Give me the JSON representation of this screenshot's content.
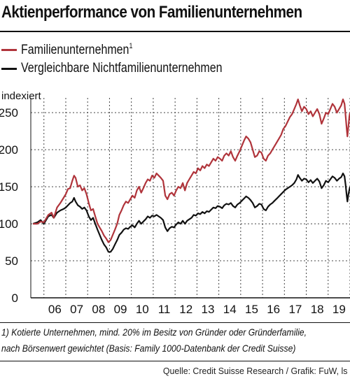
{
  "header": {
    "title": "Aktienperformance von Familienunternehmen"
  },
  "legend": [
    {
      "label": "Familienunternehmen",
      "sup": "1",
      "color": "#b0343b"
    },
    {
      "label": "Vergleichbare Nichtfamilienunternehmen",
      "sup": "",
      "color": "#111111"
    }
  ],
  "chart_data": {
    "type": "line",
    "ylabel": "indexiert",
    "ylim": [
      0,
      270
    ],
    "yticks": [
      0,
      50,
      100,
      150,
      200,
      250
    ],
    "xlim": [
      2005.4,
      2020.0
    ],
    "xticks": [
      "06",
      "07",
      "08",
      "09",
      "10",
      "11",
      "12",
      "13",
      "14",
      "15",
      "16",
      "17",
      "18",
      "19"
    ],
    "grid": true,
    "series": [
      {
        "name": "Familienunternehmen",
        "color": "#b0343b",
        "points": [
          [
            2005.5,
            100
          ],
          [
            2005.7,
            100
          ],
          [
            2005.85,
            103
          ],
          [
            2006.0,
            102
          ],
          [
            2006.2,
            112
          ],
          [
            2006.35,
            115
          ],
          [
            2006.45,
            108
          ],
          [
            2006.6,
            122
          ],
          [
            2006.75,
            128
          ],
          [
            2006.9,
            135
          ],
          [
            2007.0,
            140
          ],
          [
            2007.1,
            147
          ],
          [
            2007.2,
            148
          ],
          [
            2007.3,
            158
          ],
          [
            2007.38,
            165
          ],
          [
            2007.45,
            162
          ],
          [
            2007.55,
            150
          ],
          [
            2007.65,
            152
          ],
          [
            2007.75,
            145
          ],
          [
            2007.85,
            148
          ],
          [
            2007.95,
            140
          ],
          [
            2008.05,
            128
          ],
          [
            2008.15,
            118
          ],
          [
            2008.25,
            120
          ],
          [
            2008.35,
            110
          ],
          [
            2008.45,
            100
          ],
          [
            2008.55,
            95
          ],
          [
            2008.65,
            90
          ],
          [
            2008.75,
            84
          ],
          [
            2008.85,
            80
          ],
          [
            2008.95,
            75
          ],
          [
            2009.05,
            78
          ],
          [
            2009.15,
            85
          ],
          [
            2009.25,
            92
          ],
          [
            2009.35,
            100
          ],
          [
            2009.45,
            112
          ],
          [
            2009.55,
            118
          ],
          [
            2009.65,
            125
          ],
          [
            2009.75,
            130
          ],
          [
            2009.85,
            128
          ],
          [
            2009.95,
            133
          ],
          [
            2010.05,
            138
          ],
          [
            2010.15,
            135
          ],
          [
            2010.25,
            145
          ],
          [
            2010.35,
            150
          ],
          [
            2010.45,
            142
          ],
          [
            2010.55,
            148
          ],
          [
            2010.65,
            155
          ],
          [
            2010.75,
            160
          ],
          [
            2010.85,
            158
          ],
          [
            2010.95,
            165
          ],
          [
            2011.05,
            162
          ],
          [
            2011.15,
            168
          ],
          [
            2011.25,
            165
          ],
          [
            2011.35,
            162
          ],
          [
            2011.45,
            158
          ],
          [
            2011.55,
            138
          ],
          [
            2011.65,
            133
          ],
          [
            2011.75,
            140
          ],
          [
            2011.85,
            142
          ],
          [
            2011.95,
            138
          ],
          [
            2012.05,
            145
          ],
          [
            2012.15,
            150
          ],
          [
            2012.25,
            148
          ],
          [
            2012.35,
            155
          ],
          [
            2012.45,
            145
          ],
          [
            2012.55,
            155
          ],
          [
            2012.65,
            160
          ],
          [
            2012.75,
            165
          ],
          [
            2012.85,
            170
          ],
          [
            2012.95,
            168
          ],
          [
            2013.05,
            175
          ],
          [
            2013.15,
            172
          ],
          [
            2013.25,
            178
          ],
          [
            2013.35,
            175
          ],
          [
            2013.45,
            180
          ],
          [
            2013.55,
            178
          ],
          [
            2013.65,
            183
          ],
          [
            2013.75,
            188
          ],
          [
            2013.85,
            185
          ],
          [
            2013.95,
            190
          ],
          [
            2014.05,
            188
          ],
          [
            2014.15,
            185
          ],
          [
            2014.25,
            192
          ],
          [
            2014.35,
            195
          ],
          [
            2014.45,
            192
          ],
          [
            2014.55,
            198
          ],
          [
            2014.65,
            190
          ],
          [
            2014.75,
            185
          ],
          [
            2014.85,
            192
          ],
          [
            2014.95,
            198
          ],
          [
            2015.05,
            205
          ],
          [
            2015.15,
            212
          ],
          [
            2015.25,
            218
          ],
          [
            2015.35,
            215
          ],
          [
            2015.45,
            210
          ],
          [
            2015.55,
            200
          ],
          [
            2015.65,
            190
          ],
          [
            2015.75,
            192
          ],
          [
            2015.85,
            198
          ],
          [
            2015.95,
            196
          ],
          [
            2016.05,
            188
          ],
          [
            2016.15,
            185
          ],
          [
            2016.25,
            192
          ],
          [
            2016.35,
            195
          ],
          [
            2016.45,
            200
          ],
          [
            2016.55,
            205
          ],
          [
            2016.65,
            210
          ],
          [
            2016.75,
            215
          ],
          [
            2016.85,
            220
          ],
          [
            2016.95,
            228
          ],
          [
            2017.05,
            232
          ],
          [
            2017.15,
            238
          ],
          [
            2017.25,
            244
          ],
          [
            2017.35,
            248
          ],
          [
            2017.45,
            255
          ],
          [
            2017.55,
            262
          ],
          [
            2017.62,
            268
          ],
          [
            2017.7,
            260
          ],
          [
            2017.8,
            252
          ],
          [
            2017.9,
            258
          ],
          [
            2018.0,
            255
          ],
          [
            2018.1,
            248
          ],
          [
            2018.2,
            252
          ],
          [
            2018.3,
            245
          ],
          [
            2018.4,
            250
          ],
          [
            2018.5,
            255
          ],
          [
            2018.6,
            248
          ],
          [
            2018.7,
            235
          ],
          [
            2018.8,
            242
          ],
          [
            2018.9,
            250
          ],
          [
            2019.0,
            248
          ],
          [
            2019.1,
            255
          ],
          [
            2019.2,
            262
          ],
          [
            2019.3,
            258
          ],
          [
            2019.4,
            250
          ],
          [
            2019.5,
            255
          ],
          [
            2019.6,
            260
          ],
          [
            2019.68,
            268
          ],
          [
            2019.75,
            262
          ],
          [
            2019.8,
            245
          ],
          [
            2019.85,
            228
          ],
          [
            2019.88,
            218
          ],
          [
            2019.93,
            232
          ],
          [
            2019.97,
            245
          ],
          [
            2020.0,
            250
          ]
        ]
      },
      {
        "name": "Vergleichbare Nichtfamilienunternehmen",
        "color": "#111111",
        "points": [
          [
            2005.5,
            100
          ],
          [
            2005.7,
            102
          ],
          [
            2005.85,
            105
          ],
          [
            2006.0,
            100
          ],
          [
            2006.2,
            110
          ],
          [
            2006.35,
            112
          ],
          [
            2006.45,
            108
          ],
          [
            2006.6,
            115
          ],
          [
            2006.75,
            118
          ],
          [
            2006.9,
            120
          ],
          [
            2007.0,
            122
          ],
          [
            2007.1,
            125
          ],
          [
            2007.2,
            128
          ],
          [
            2007.3,
            130
          ],
          [
            2007.38,
            135
          ],
          [
            2007.45,
            130
          ],
          [
            2007.55,
            125
          ],
          [
            2007.65,
            123
          ],
          [
            2007.75,
            120
          ],
          [
            2007.85,
            122
          ],
          [
            2007.95,
            118
          ],
          [
            2008.05,
            110
          ],
          [
            2008.15,
            105
          ],
          [
            2008.25,
            108
          ],
          [
            2008.35,
            100
          ],
          [
            2008.45,
            92
          ],
          [
            2008.55,
            85
          ],
          [
            2008.65,
            78
          ],
          [
            2008.75,
            72
          ],
          [
            2008.85,
            68
          ],
          [
            2008.95,
            62
          ],
          [
            2009.05,
            62
          ],
          [
            2009.15,
            66
          ],
          [
            2009.25,
            72
          ],
          [
            2009.35,
            78
          ],
          [
            2009.45,
            85
          ],
          [
            2009.55,
            88
          ],
          [
            2009.65,
            92
          ],
          [
            2009.75,
            94
          ],
          [
            2009.85,
            93
          ],
          [
            2009.95,
            96
          ],
          [
            2010.05,
            98
          ],
          [
            2010.15,
            95
          ],
          [
            2010.25,
            100
          ],
          [
            2010.35,
            104
          ],
          [
            2010.45,
            100
          ],
          [
            2010.55,
            103
          ],
          [
            2010.65,
            106
          ],
          [
            2010.75,
            110
          ],
          [
            2010.85,
            108
          ],
          [
            2010.95,
            111
          ],
          [
            2011.05,
            110
          ],
          [
            2011.15,
            112
          ],
          [
            2011.25,
            110
          ],
          [
            2011.35,
            108
          ],
          [
            2011.45,
            105
          ],
          [
            2011.55,
            95
          ],
          [
            2011.65,
            90
          ],
          [
            2011.75,
            94
          ],
          [
            2011.85,
            96
          ],
          [
            2011.95,
            95
          ],
          [
            2012.05,
            99
          ],
          [
            2012.15,
            102
          ],
          [
            2012.25,
            100
          ],
          [
            2012.35,
            104
          ],
          [
            2012.45,
            100
          ],
          [
            2012.55,
            104
          ],
          [
            2012.65,
            106
          ],
          [
            2012.75,
            108
          ],
          [
            2012.85,
            112
          ],
          [
            2012.95,
            111
          ],
          [
            2013.05,
            114
          ],
          [
            2013.15,
            113
          ],
          [
            2013.25,
            116
          ],
          [
            2013.35,
            114
          ],
          [
            2013.45,
            117
          ],
          [
            2013.55,
            116
          ],
          [
            2013.65,
            119
          ],
          [
            2013.75,
            122
          ],
          [
            2013.85,
            121
          ],
          [
            2013.95,
            124
          ],
          [
            2014.05,
            123
          ],
          [
            2014.15,
            121
          ],
          [
            2014.25,
            125
          ],
          [
            2014.35,
            127
          ],
          [
            2014.45,
            126
          ],
          [
            2014.55,
            128
          ],
          [
            2014.65,
            124
          ],
          [
            2014.75,
            122
          ],
          [
            2014.85,
            126
          ],
          [
            2014.95,
            128
          ],
          [
            2015.05,
            131
          ],
          [
            2015.15,
            134
          ],
          [
            2015.25,
            137
          ],
          [
            2015.35,
            135
          ],
          [
            2015.45,
            132
          ],
          [
            2015.55,
            128
          ],
          [
            2015.65,
            122
          ],
          [
            2015.75,
            124
          ],
          [
            2015.85,
            127
          ],
          [
            2015.95,
            126
          ],
          [
            2016.05,
            120
          ],
          [
            2016.15,
            118
          ],
          [
            2016.25,
            123
          ],
          [
            2016.35,
            126
          ],
          [
            2016.45,
            128
          ],
          [
            2016.55,
            131
          ],
          [
            2016.65,
            134
          ],
          [
            2016.75,
            137
          ],
          [
            2016.85,
            140
          ],
          [
            2016.95,
            143
          ],
          [
            2017.05,
            146
          ],
          [
            2017.15,
            148
          ],
          [
            2017.25,
            150
          ],
          [
            2017.35,
            152
          ],
          [
            2017.45,
            155
          ],
          [
            2017.55,
            160
          ],
          [
            2017.62,
            166
          ],
          [
            2017.7,
            162
          ],
          [
            2017.8,
            158
          ],
          [
            2017.9,
            161
          ],
          [
            2018.0,
            160
          ],
          [
            2018.1,
            156
          ],
          [
            2018.2,
            159
          ],
          [
            2018.3,
            155
          ],
          [
            2018.4,
            158
          ],
          [
            2018.5,
            161
          ],
          [
            2018.6,
            157
          ],
          [
            2018.7,
            148
          ],
          [
            2018.8,
            152
          ],
          [
            2018.9,
            158
          ],
          [
            2019.0,
            156
          ],
          [
            2019.1,
            160
          ],
          [
            2019.2,
            164
          ],
          [
            2019.3,
            162
          ],
          [
            2019.4,
            158
          ],
          [
            2019.5,
            161
          ],
          [
            2019.6,
            163
          ],
          [
            2019.68,
            168
          ],
          [
            2019.75,
            164
          ],
          [
            2019.8,
            152
          ],
          [
            2019.85,
            138
          ],
          [
            2019.88,
            130
          ],
          [
            2019.93,
            140
          ],
          [
            2019.97,
            146
          ],
          [
            2020.0,
            150
          ]
        ]
      }
    ]
  },
  "footnote": {
    "line1": "1) Kotierte Unternehmen, mind. 20% im Besitz von Gründer oder Gründerfamilie,",
    "line2": "nach Börsenwert gewichtet (Basis: Family 1000-Datenbank der Credit Suisse)"
  },
  "source": "Quelle: Credit Suisse Research / Grafik: FuW, ls"
}
